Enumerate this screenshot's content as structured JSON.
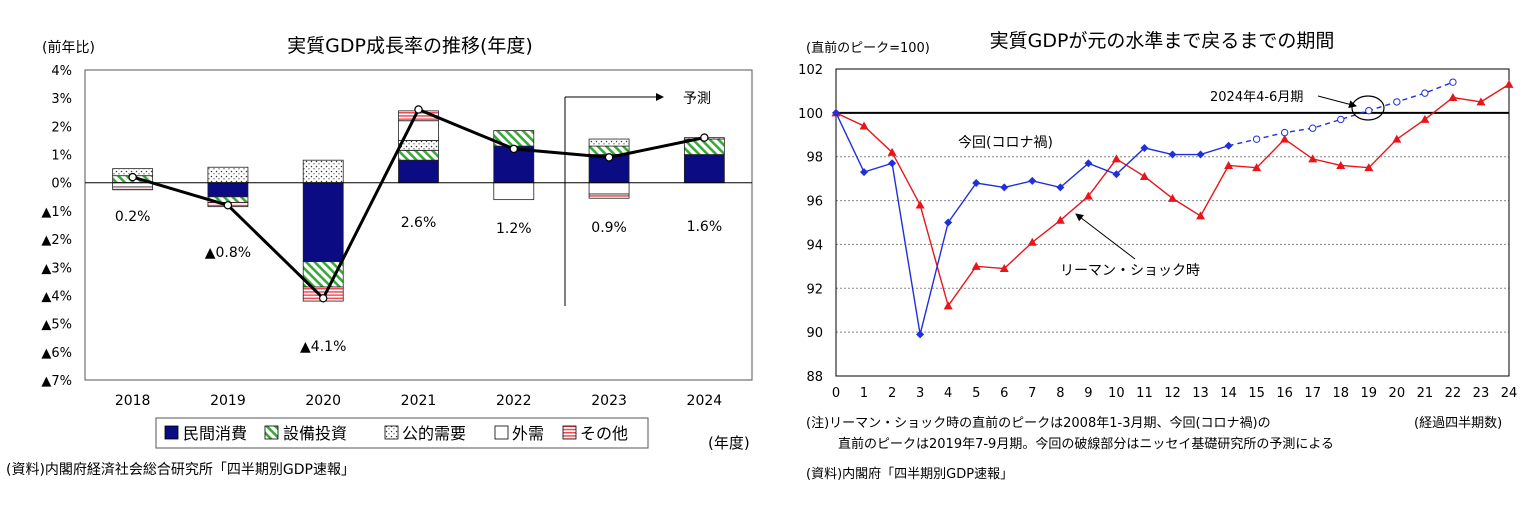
{
  "chart_data": [
    {
      "type": "bar",
      "title": "実質GDP成長率の推移(年度)",
      "ylabel": "(前年比)",
      "xlabel": "(年度)",
      "source": "(資料)内閣府経済社会総合研究所「四半期別GDP速報」",
      "ylim": [
        -7,
        4
      ],
      "ytick_values": [
        4,
        3,
        2,
        1,
        0,
        -1,
        -2,
        -3,
        -4,
        -5,
        -6,
        -7
      ],
      "ytick_labels": [
        "4%",
        "3%",
        "2%",
        "1%",
        "0%",
        "▲1%",
        "▲2%",
        "▲3%",
        "▲4%",
        "▲5%",
        "▲6%",
        "▲7%"
      ],
      "categories": [
        "2018",
        "2019",
        "2020",
        "2021",
        "2022",
        "2023",
        "2024"
      ],
      "series": [
        {
          "name": "民間消費",
          "key": "priv",
          "values": [
            0.0,
            -0.5,
            -2.8,
            0.8,
            1.3,
            1.0,
            1.0
          ]
        },
        {
          "name": "設備投資",
          "key": "cap",
          "values": [
            0.25,
            -0.2,
            -0.9,
            0.35,
            0.55,
            0.3,
            0.55
          ]
        },
        {
          "name": "公的需要",
          "key": "pub",
          "values": [
            0.25,
            0.55,
            0.8,
            0.35,
            0.0,
            0.25,
            0.05
          ]
        },
        {
          "name": "外需",
          "key": "ext",
          "values": [
            -0.15,
            0.0,
            0.0,
            0.7,
            -0.6,
            -0.4,
            0.0
          ]
        },
        {
          "name": "その他",
          "key": "oth",
          "values": [
            -0.1,
            -0.15,
            -0.5,
            0.35,
            0.0,
            -0.15,
            0.0
          ]
        }
      ],
      "growth_line": [
        0.2,
        -0.8,
        -4.1,
        2.6,
        1.2,
        0.9,
        1.6
      ],
      "data_labels": [
        "0.2%",
        "▲0.8%",
        "▲4.1%",
        "2.6%",
        "1.2%",
        "0.9%",
        "1.6%"
      ],
      "forecast_label": "予測",
      "legend_position": "bottom"
    },
    {
      "type": "line",
      "title": "実質GDPが元の水準まで戻るまでの期間",
      "ylabel": "(直前のピーク=100)",
      "xlabel": "(経過四半期数)",
      "ylim": [
        88,
        102
      ],
      "yticks": [
        88,
        90,
        92,
        94,
        96,
        98,
        100,
        102
      ],
      "xlim": [
        0,
        24
      ],
      "xticks": [
        0,
        1,
        2,
        3,
        4,
        5,
        6,
        7,
        8,
        9,
        10,
        11,
        12,
        13,
        14,
        15,
        16,
        17,
        18,
        19,
        20,
        21,
        22,
        23,
        24
      ],
      "grid": true,
      "reference_line": 100,
      "series": [
        {
          "name": "リーマン・ショック時",
          "color": "#e8151b",
          "marker": "triangle",
          "values": [
            100,
            99.4,
            98.2,
            95.8,
            91.2,
            93.0,
            92.9,
            94.1,
            95.1,
            96.2,
            97.9,
            97.1,
            96.1,
            95.3,
            97.6,
            97.5,
            98.8,
            97.9,
            97.6,
            97.5,
            98.8,
            99.7,
            100.7,
            100.5,
            101.3
          ]
        },
        {
          "name": "今回(コロナ禍)",
          "color": "#1f2fdc",
          "marker": "diamond",
          "values": [
            100,
            97.3,
            97.7,
            89.9,
            95.0,
            96.8,
            96.6,
            96.9,
            96.6,
            97.7,
            97.2,
            98.4,
            98.1,
            98.1,
            98.5
          ]
        },
        {
          "name": "今回(予測)",
          "color": "#1f2fdc",
          "marker": "circle-open",
          "style": "dashed",
          "start_x": 14,
          "values": [
            98.5,
            98.8,
            99.1,
            99.3,
            99.7,
            100.1,
            100.5,
            100.9,
            101.4
          ]
        }
      ],
      "annotations": [
        "今回(コロナ禍)",
        "リーマン・ショック時",
        "2024年4-6月期"
      ],
      "notes": [
        "(注)リーマン・ショック時の直前のピークは2008年1-3月期、今回(コロナ禍)の",
        "直前のピークは2019年7-9月期。今回の破線部分はニッセイ基礎研究所の予測による"
      ],
      "source": "(資料)内閣府「四半期別GDP速報」"
    }
  ]
}
